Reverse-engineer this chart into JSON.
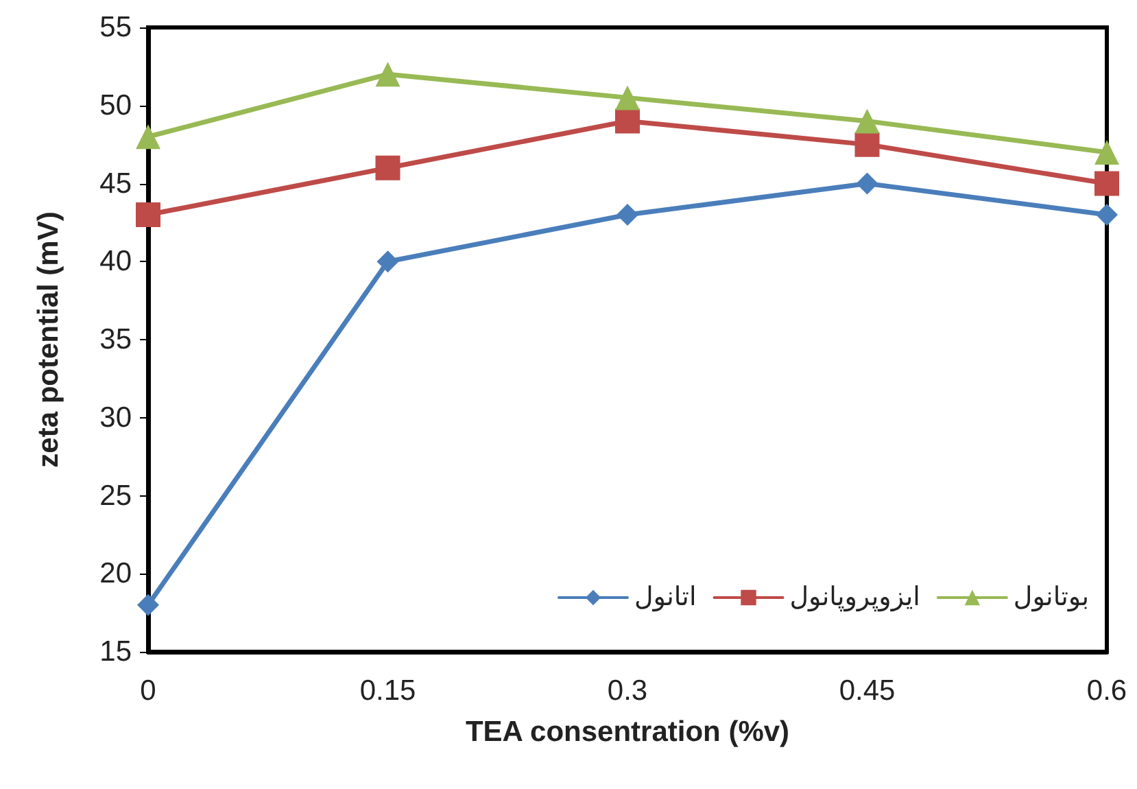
{
  "chart_data": {
    "type": "line",
    "xlabel": "TEA consentration (%v)",
    "ylabel": "zeta potential (mV)",
    "categories": [
      "0",
      "0.15",
      "0.3",
      "0.45",
      "0.6"
    ],
    "series": [
      {
        "name": "اتانول",
        "color": "#4a7ebb",
        "marker": "diamond",
        "values": [
          18,
          40,
          43,
          45,
          43
        ]
      },
      {
        "name": "ایزوپروپانول",
        "color": "#be4b48",
        "marker": "square",
        "values": [
          43,
          46,
          49,
          47.5,
          45
        ]
      },
      {
        "name": "بوتانول",
        "color": "#98b954",
        "marker": "triangle",
        "values": [
          48,
          52,
          50.5,
          49,
          47
        ]
      }
    ],
    "ylim": [
      15,
      55
    ],
    "yticks": [
      15,
      20,
      25,
      30,
      35,
      40,
      45,
      50,
      55
    ],
    "grid": false,
    "legend": "bottom right"
  }
}
